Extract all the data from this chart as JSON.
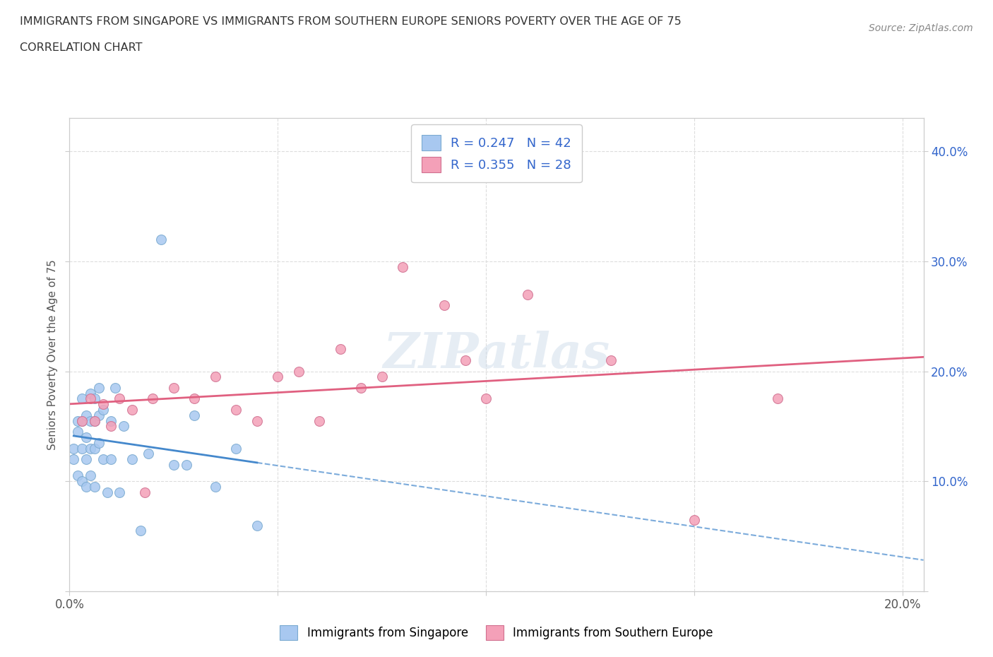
{
  "title_line1": "IMMIGRANTS FROM SINGAPORE VS IMMIGRANTS FROM SOUTHERN EUROPE SENIORS POVERTY OVER THE AGE OF 75",
  "title_line2": "CORRELATION CHART",
  "source_text": "Source: ZipAtlas.com",
  "ylabel": "Seniors Poverty Over the Age of 75",
  "xlim": [
    0.0,
    0.205
  ],
  "ylim": [
    0.0,
    0.43
  ],
  "xticks": [
    0.0,
    0.05,
    0.1,
    0.15,
    0.2
  ],
  "yticks": [
    0.0,
    0.1,
    0.2,
    0.3,
    0.4
  ],
  "r_singapore": 0.247,
  "n_singapore": 42,
  "r_southern_europe": 0.355,
  "n_southern_europe": 28,
  "singapore_color": "#a8c8f0",
  "singapore_edge_color": "#7aaad0",
  "southern_europe_color": "#f4a0b8",
  "southern_europe_edge_color": "#d07090",
  "singapore_line_color": "#4488cc",
  "southern_europe_line_color": "#e06080",
  "legend_r_color": "#3366cc",
  "right_tick_color": "#3366cc",
  "background_color": "#ffffff",
  "watermark": "ZIPatlas",
  "grid_color": "#dddddd",
  "grid_dash": [
    4,
    4
  ],
  "singapore_x": [
    0.001,
    0.001,
    0.002,
    0.002,
    0.002,
    0.003,
    0.003,
    0.003,
    0.003,
    0.004,
    0.004,
    0.004,
    0.004,
    0.005,
    0.005,
    0.005,
    0.005,
    0.006,
    0.006,
    0.006,
    0.006,
    0.007,
    0.007,
    0.007,
    0.008,
    0.008,
    0.009,
    0.01,
    0.01,
    0.011,
    0.012,
    0.013,
    0.015,
    0.017,
    0.019,
    0.022,
    0.025,
    0.028,
    0.03,
    0.035,
    0.04,
    0.045
  ],
  "singapore_y": [
    0.13,
    0.12,
    0.155,
    0.145,
    0.105,
    0.175,
    0.155,
    0.13,
    0.1,
    0.16,
    0.14,
    0.12,
    0.095,
    0.18,
    0.155,
    0.13,
    0.105,
    0.175,
    0.155,
    0.13,
    0.095,
    0.185,
    0.16,
    0.135,
    0.165,
    0.12,
    0.09,
    0.155,
    0.12,
    0.185,
    0.09,
    0.15,
    0.12,
    0.055,
    0.125,
    0.32,
    0.115,
    0.115,
    0.16,
    0.095,
    0.13,
    0.06
  ],
  "southern_europe_x": [
    0.003,
    0.005,
    0.006,
    0.008,
    0.01,
    0.012,
    0.015,
    0.018,
    0.02,
    0.025,
    0.03,
    0.035,
    0.04,
    0.045,
    0.05,
    0.055,
    0.06,
    0.065,
    0.07,
    0.075,
    0.08,
    0.09,
    0.095,
    0.1,
    0.11,
    0.13,
    0.15,
    0.17
  ],
  "southern_europe_y": [
    0.155,
    0.175,
    0.155,
    0.17,
    0.15,
    0.175,
    0.165,
    0.09,
    0.175,
    0.185,
    0.175,
    0.195,
    0.165,
    0.155,
    0.195,
    0.2,
    0.155,
    0.22,
    0.185,
    0.195,
    0.295,
    0.26,
    0.21,
    0.175,
    0.27,
    0.21,
    0.065,
    0.175
  ]
}
